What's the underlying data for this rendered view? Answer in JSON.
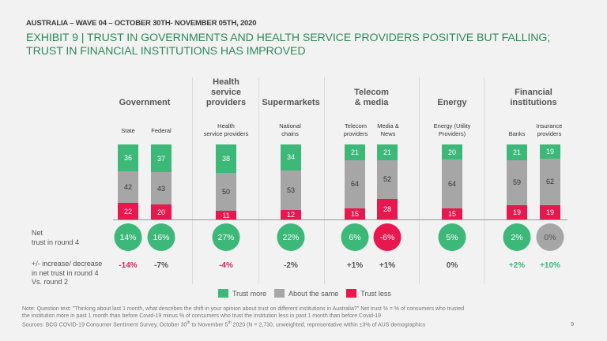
{
  "header": {
    "subhead": "AUSTRALIA – WAVE 04 – OCTOBER 30TH- NOVEMBER 05TH, 2020",
    "title_line1": "EXHIBIT 9 | TRUST IN GOVERNMENTS AND HEALTH SERVICE PROVIDERS POSITIVE BUT FALLING;",
    "title_line2": "TRUST IN FINANCIAL INSTITUTIONS HAS IMPROVED"
  },
  "colors": {
    "trust_more": "#3cb878",
    "about_same": "#a6a6a6",
    "trust_less": "#e8174d",
    "title": "#2e8b57"
  },
  "chart_data": {
    "type": "bar",
    "stacked": true,
    "unit": "%",
    "groups": [
      {
        "title": "Government",
        "categories": [
          "State",
          "Federal"
        ]
      },
      {
        "title": "Health service providers",
        "categories": [
          "Health service providers"
        ]
      },
      {
        "title": "Supermarkets",
        "categories": [
          "National chains"
        ]
      },
      {
        "title": "Telecom & media",
        "categories": [
          "Telecom providers",
          "Media & News"
        ]
      },
      {
        "title": "Energy",
        "categories": [
          "Energy (Utility Providers)"
        ]
      },
      {
        "title": "Financial institutions",
        "categories": [
          "Banks",
          "Insurance providers"
        ]
      }
    ],
    "categories": [
      "State",
      "Federal",
      "Health service providers",
      "National chains",
      "Telecom providers",
      "Media & News",
      "Energy (Utility Providers)",
      "Banks",
      "Insurance providers"
    ],
    "series": [
      {
        "name": "Trust more",
        "values": [
          36,
          37,
          38,
          34,
          21,
          21,
          20,
          21,
          19
        ]
      },
      {
        "name": "About the same",
        "values": [
          42,
          43,
          50,
          53,
          64,
          52,
          64,
          59,
          62
        ]
      },
      {
        "name": "Trust less",
        "values": [
          22,
          20,
          11,
          12,
          15,
          28,
          15,
          19,
          19
        ]
      }
    ],
    "net_trust_round4": [
      "14%",
      "16%",
      "27%",
      "22%",
      "6%",
      "-6%",
      "5%",
      "2%",
      "0%"
    ],
    "net_trust_tone": [
      "green",
      "green",
      "green",
      "green",
      "green",
      "red",
      "green",
      "green",
      "grey"
    ],
    "change_vs_round2": [
      "-14%",
      "-7%",
      "-4%",
      "-2%",
      "+1%",
      "+1%",
      "0%",
      "+2%",
      "+10%"
    ],
    "change_tone": [
      "red",
      "grey",
      "red",
      "grey",
      "grey",
      "grey",
      "grey",
      "green",
      "green"
    ],
    "legend": [
      "Trust more",
      "About the same",
      "Trust less"
    ],
    "legend_position": "bottom",
    "ylim": [
      0,
      100
    ]
  },
  "group_titles": {
    "government": "Government",
    "health_l1": "Health",
    "health_l2": "service",
    "health_l3": "providers",
    "supermarkets": "Supermarkets",
    "telecom_l1": "Telecom",
    "telecom_l2": "& media",
    "energy": "Energy",
    "financial_l1": "Financial",
    "financial_l2": "institutions"
  },
  "sub_labels": {
    "state": "State",
    "federal": "Federal",
    "health_l1": "Health",
    "health_l2": "service providers",
    "national_l1": "National",
    "national_l2": "chains",
    "telecom_l1": "Telecom",
    "telecom_l2": "providers",
    "media_l1": "Media &",
    "media_l2": "News",
    "energy_l1": "Energy (Utility",
    "energy_l2": "Providers)",
    "banks": "Banks",
    "insurance_l1": "Insurance",
    "insurance_l2": "providers"
  },
  "row_labels": {
    "net_l1": "Net",
    "net_l2": "trust in round 4",
    "change_l1": "+/- increase/ decrease",
    "change_l2": "in net trust in round 4",
    "change_l3": "Vs. round 2"
  },
  "footer": {
    "note_line1": "Note: Question text: \"Thinking about last 1 month, what describes the shift in your opinion about trust on different institutions in Australia?\" Net trust % = % of consumers who trusted",
    "note_line2": "the institution more in past 1 month than before Covid-19 minus % of consumers who trust the institution less in past 1 month than before Covid-19",
    "sources_pre": "Sources: BCG COVID-19 Consumer Sentiment Survey, October 30",
    "sources_sup1": "th",
    "sources_mid": " to November 5",
    "sources_sup2": "th",
    "sources_post": " 2020 (N = 2,730, unweighted, representative within ±3% of AUS demographics",
    "page_number": "9"
  }
}
